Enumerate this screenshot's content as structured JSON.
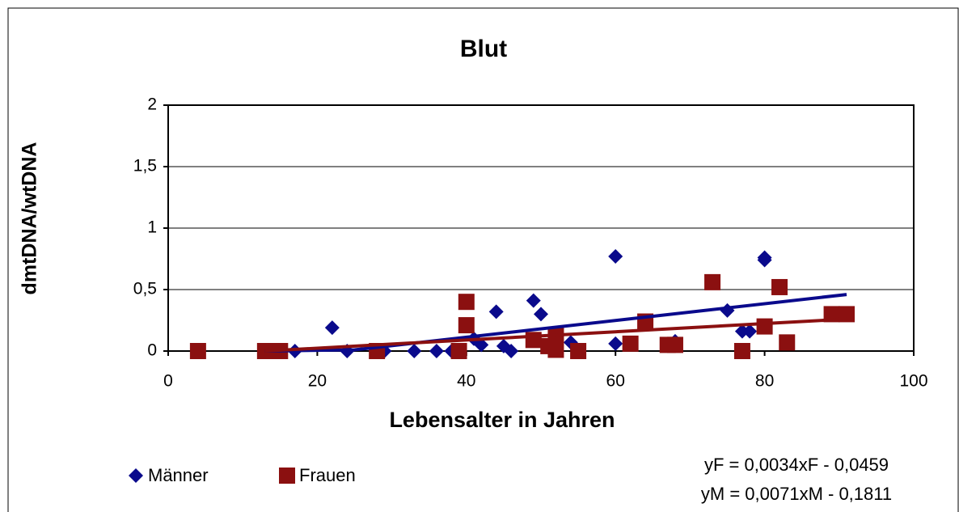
{
  "chart_data": {
    "type": "scatter",
    "title": "Blut",
    "x_label": "Lebensalter in Jahren",
    "y_label": "dmtDNA/wtDNA",
    "xlim": [
      0,
      100
    ],
    "xticks": [
      0,
      20,
      40,
      60,
      80,
      100
    ],
    "ylim": [
      0,
      2
    ],
    "yticks": [
      0,
      {
        "value": 0.5,
        "label": "0,5"
      },
      1,
      {
        "value": 1.5,
        "label": "1,5"
      },
      2
    ],
    "grid": true,
    "legend": "bottom-left",
    "series": [
      {
        "name": "Männer",
        "color": "#0a0a8c",
        "marker": "diamond",
        "x": [
          17,
          22,
          24,
          29,
          33,
          36,
          38,
          41,
          42,
          44,
          45,
          46,
          49,
          50,
          54,
          60,
          60,
          68,
          75,
          77,
          78,
          80,
          80
        ],
        "values": [
          0,
          0.19,
          0,
          0,
          0,
          0,
          0,
          0.1,
          0.05,
          0.32,
          0.04,
          0,
          0.41,
          0.3,
          0.07,
          0.77,
          0.06,
          0.08,
          0.33,
          0.16,
          0.16,
          0.76,
          0.74
        ],
        "trendline": {
          "x": [
            13,
            25,
            91
          ],
          "values": [
            0,
            0.01,
            0.46
          ]
        }
      },
      {
        "name": "Frauen",
        "color": "#8b1010",
        "marker": "square",
        "x": [
          4,
          13,
          14,
          15,
          28,
          39,
          40,
          40,
          49,
          51,
          52,
          52,
          55,
          62,
          64,
          67,
          68,
          73,
          77,
          80,
          82,
          83,
          89,
          91
        ],
        "values": [
          0,
          0,
          0,
          0,
          0,
          0,
          0.4,
          0.21,
          0.09,
          0.04,
          0.01,
          0.13,
          0,
          0.06,
          0.24,
          0.05,
          0.05,
          0.56,
          0,
          0.2,
          0.52,
          0.07,
          0.3,
          0.3
        ],
        "trendline": {
          "x": [
            13,
            91
          ],
          "values": [
            0,
            0.26
          ]
        }
      }
    ],
    "annotations": [
      "yF = 0,0034xF - 0,0459",
      "yM = 0,0071xM - 0,1811"
    ]
  }
}
